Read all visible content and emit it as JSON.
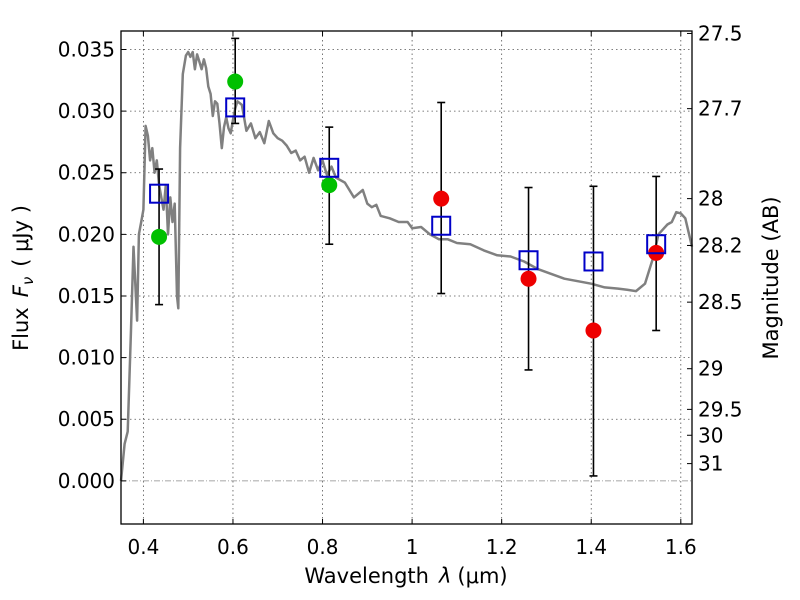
{
  "chart_data": {
    "type": "scatter",
    "xlabel_prefix": "Wavelength",
    "xlabel_symbol": "λ",
    "xlabel_unit": "(μm)",
    "ylabel_prefix": "Flux",
    "ylabel_symbol": "F",
    "ylabel_subscript": "ν",
    "ylabel_unit": "( μJy )",
    "y2label": "Magnitude (AB)",
    "xlim": [
      0.35,
      1.625
    ],
    "ylim": [
      -0.0035,
      0.0365
    ],
    "x_ticks": [
      {
        "value": 0.4,
        "label": "0.4"
      },
      {
        "value": 0.6,
        "label": "0.6"
      },
      {
        "value": 0.8,
        "label": "0.8"
      },
      {
        "value": 1.0,
        "label": "1"
      },
      {
        "value": 1.2,
        "label": "1.2"
      },
      {
        "value": 1.4,
        "label": "1.4"
      },
      {
        "value": 1.6,
        "label": "1.6"
      }
    ],
    "y_ticks": [
      {
        "value": 0.0,
        "label": "0.000"
      },
      {
        "value": 0.005,
        "label": "0.005"
      },
      {
        "value": 0.01,
        "label": "0.010"
      },
      {
        "value": 0.015,
        "label": "0.015"
      },
      {
        "value": 0.02,
        "label": "0.020"
      },
      {
        "value": 0.025,
        "label": "0.025"
      },
      {
        "value": 0.03,
        "label": "0.030"
      },
      {
        "value": 0.035,
        "label": "0.035"
      }
    ],
    "mag_ticks": [
      {
        "label": "27.5",
        "flux": 0.0363
      },
      {
        "label": "27.7",
        "flux": 0.0302
      },
      {
        "label": "28",
        "flux": 0.0229
      },
      {
        "label": "28.2",
        "flux": 0.0191
      },
      {
        "label": "28.5",
        "flux": 0.0145
      },
      {
        "label": "29",
        "flux": 0.0091
      },
      {
        "label": "29.5",
        "flux": 0.0058
      },
      {
        "label": "30",
        "flux": 0.0037
      },
      {
        "label": "31",
        "flux": 0.0014
      }
    ],
    "grid": true,
    "spectrum": {
      "color": "#808080",
      "x": [
        0.35,
        0.358,
        0.365,
        0.372,
        0.378,
        0.382,
        0.386,
        0.39,
        0.395,
        0.4,
        0.405,
        0.41,
        0.415,
        0.42,
        0.425,
        0.43,
        0.435,
        0.44,
        0.445,
        0.45,
        0.455,
        0.46,
        0.465,
        0.47,
        0.475,
        0.478,
        0.482,
        0.488,
        0.495,
        0.5,
        0.505,
        0.51,
        0.515,
        0.52,
        0.525,
        0.53,
        0.535,
        0.54,
        0.545,
        0.55,
        0.555,
        0.56,
        0.565,
        0.57,
        0.575,
        0.58,
        0.585,
        0.59,
        0.595,
        0.6,
        0.605,
        0.61,
        0.62,
        0.63,
        0.64,
        0.65,
        0.66,
        0.67,
        0.68,
        0.69,
        0.7,
        0.71,
        0.72,
        0.73,
        0.74,
        0.75,
        0.76,
        0.77,
        0.78,
        0.79,
        0.8,
        0.81,
        0.82,
        0.83,
        0.85,
        0.87,
        0.89,
        0.9,
        0.91,
        0.92,
        0.93,
        0.95,
        0.97,
        0.99,
        1.0,
        1.02,
        1.04,
        1.06,
        1.08,
        1.1,
        1.13,
        1.16,
        1.19,
        1.22,
        1.25,
        1.28,
        1.31,
        1.34,
        1.37,
        1.4,
        1.43,
        1.46,
        1.48,
        1.5,
        1.52,
        1.54,
        1.55,
        1.56,
        1.57,
        1.58,
        1.59,
        1.6,
        1.61,
        1.625
      ],
      "y": [
        0.0,
        0.003,
        0.004,
        0.012,
        0.019,
        0.016,
        0.013,
        0.02,
        0.021,
        0.022,
        0.0288,
        0.028,
        0.026,
        0.027,
        0.025,
        0.026,
        0.024,
        0.023,
        0.022,
        0.024,
        0.02,
        0.023,
        0.021,
        0.0225,
        0.015,
        0.014,
        0.027,
        0.033,
        0.0345,
        0.0348,
        0.0344,
        0.0348,
        0.0334,
        0.0346,
        0.034,
        0.0334,
        0.0342,
        0.0335,
        0.032,
        0.0314,
        0.0296,
        0.0308,
        0.0306,
        0.029,
        0.027,
        0.0287,
        0.0295,
        0.0286,
        0.0282,
        0.0293,
        0.0302,
        0.0308,
        0.0305,
        0.0284,
        0.029,
        0.0278,
        0.0283,
        0.0274,
        0.0292,
        0.0282,
        0.0278,
        0.0276,
        0.0272,
        0.0266,
        0.0268,
        0.026,
        0.0263,
        0.025,
        0.0262,
        0.0252,
        0.026,
        0.0248,
        0.0255,
        0.0246,
        0.0242,
        0.023,
        0.0236,
        0.0225,
        0.0222,
        0.0224,
        0.0215,
        0.0213,
        0.021,
        0.021,
        0.0205,
        0.0206,
        0.02,
        0.0196,
        0.0196,
        0.0193,
        0.0192,
        0.0187,
        0.0183,
        0.0182,
        0.0178,
        0.0172,
        0.0168,
        0.0164,
        0.0162,
        0.016,
        0.0157,
        0.0156,
        0.0155,
        0.0154,
        0.016,
        0.0183,
        0.02,
        0.0204,
        0.0208,
        0.021,
        0.0218,
        0.0217,
        0.0213,
        0.019
      ]
    },
    "photometry": [
      {
        "x": 0.435,
        "model": 0.0233,
        "observed": 0.0198,
        "err_low": 0.0143,
        "err_high": 0.0253,
        "color": "#00c000"
      },
      {
        "x": 0.605,
        "model": 0.0303,
        "observed": 0.0324,
        "err_low": 0.029,
        "err_high": 0.0359,
        "color": "#00c000"
      },
      {
        "x": 0.815,
        "model": 0.0254,
        "observed": 0.024,
        "err_low": 0.0192,
        "err_high": 0.0287,
        "color": "#00c000"
      },
      {
        "x": 1.065,
        "model": 0.0207,
        "observed": 0.0229,
        "err_low": 0.0152,
        "err_high": 0.0307,
        "color": "#ee0000"
      },
      {
        "x": 1.26,
        "model": 0.0179,
        "observed": 0.0164,
        "err_low": 0.009,
        "err_high": 0.0238,
        "color": "#ee0000"
      },
      {
        "x": 1.405,
        "model": 0.0178,
        "observed": 0.0122,
        "err_low": 0.0004,
        "err_high": 0.0239,
        "color": "#ee0000"
      },
      {
        "x": 1.545,
        "model": 0.0192,
        "observed": 0.0185,
        "err_low": 0.0122,
        "err_high": 0.0247,
        "color": "#ee0000"
      }
    ],
    "model_marker_color": "#0000c8"
  }
}
